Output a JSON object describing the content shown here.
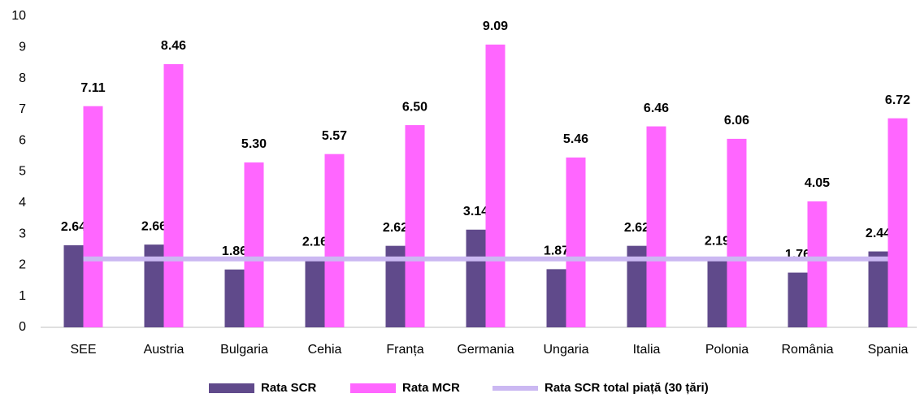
{
  "chart_data": {
    "type": "bar",
    "categories": [
      "SEE",
      "Austria",
      "Bulgaria",
      "Cehia",
      "Franța",
      "Germania",
      "Ungaria",
      "Italia",
      "Polonia",
      "România",
      "Spania"
    ],
    "series": [
      {
        "name": "Rata SCR",
        "color": "#604a8b",
        "values": [
          2.64,
          2.66,
          1.86,
          2.16,
          2.62,
          3.14,
          1.87,
          2.62,
          2.19,
          1.76,
          2.44
        ],
        "value_labels": [
          "2.64",
          "2.66",
          "1.86",
          "2.16",
          "2.62",
          "3.14",
          "1.87",
          "2.62",
          "2.19",
          "1.76",
          "2.44"
        ]
      },
      {
        "name": "Rata MCR",
        "color": "#ff66ff",
        "values": [
          7.11,
          8.46,
          5.3,
          5.57,
          6.5,
          9.09,
          5.46,
          6.46,
          6.06,
          4.05,
          6.72
        ],
        "value_labels": [
          "7.11",
          "8.46",
          "5.30",
          "5.57",
          "6.50",
          "9.09",
          "5.46",
          "6.46",
          "6.06",
          "4.05",
          "6.72"
        ]
      },
      {
        "name": "Rata SCR total piață (30 țări)",
        "type": "line",
        "color": "#cbb8f2",
        "values": [
          2.2,
          2.2,
          2.2,
          2.2,
          2.2,
          2.2,
          2.2,
          2.2,
          2.2,
          2.2,
          2.2
        ]
      }
    ],
    "ylim": [
      0,
      10
    ],
    "yticks": [
      0,
      1,
      2,
      3,
      4,
      5,
      6,
      7,
      8,
      9,
      10
    ],
    "grid": false,
    "legend": "bottom"
  }
}
